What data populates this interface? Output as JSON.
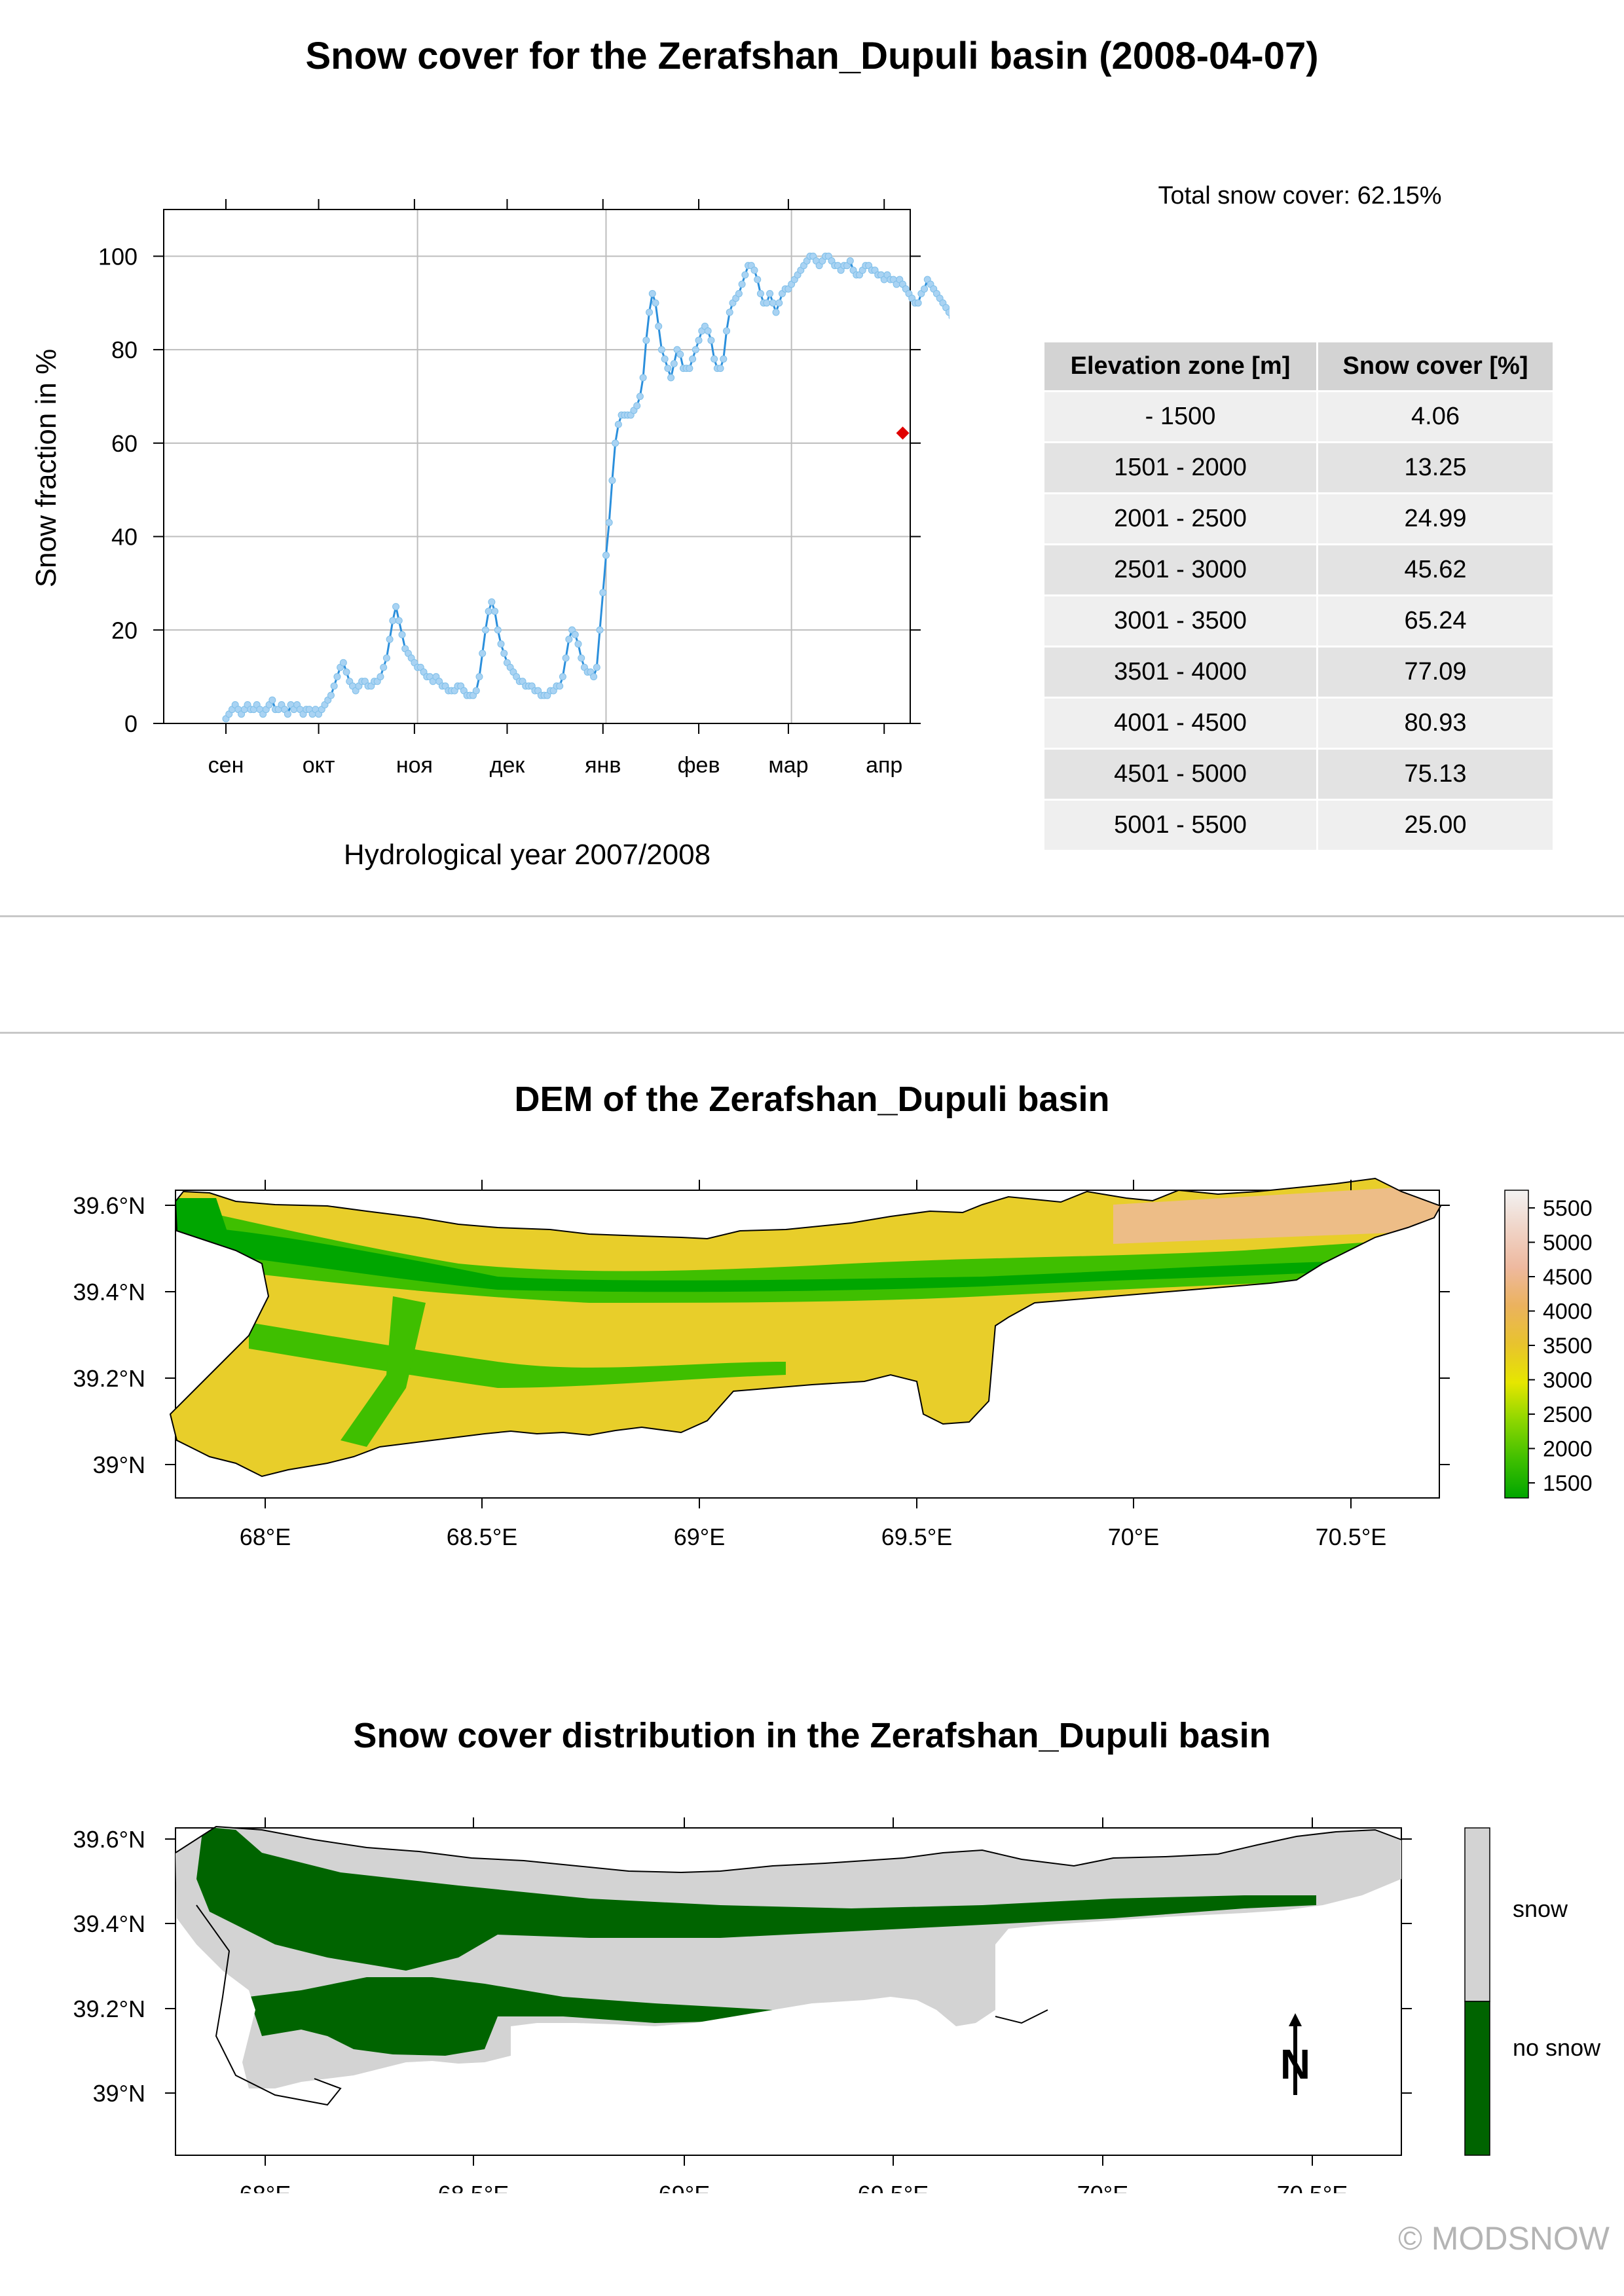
{
  "page": {
    "title": "Snow cover for the Zerafshan_Dupuli basin (2008-04-07)",
    "copyright": "© MODSNOW"
  },
  "snow_summary": {
    "total_label": "Total snow cover: 62.15%",
    "table_headers": [
      "Elevation zone [m]",
      "Snow cover [%]"
    ],
    "table_rows": [
      {
        "zone": "- 1500",
        "cover": "4.06"
      },
      {
        "zone": "1501 - 2000",
        "cover": "13.25"
      },
      {
        "zone": "2001 - 2500",
        "cover": "24.99"
      },
      {
        "zone": "2501 - 3000",
        "cover": "45.62"
      },
      {
        "zone": "3001 - 3500",
        "cover": "65.24"
      },
      {
        "zone": "3501 - 4000",
        "cover": "77.09"
      },
      {
        "zone": "4001 - 4500",
        "cover": "80.93"
      },
      {
        "zone": "4501 - 5000",
        "cover": "75.13"
      },
      {
        "zone": "5001 - 5500",
        "cover": "25.00"
      }
    ]
  },
  "chart_data": [
    {
      "type": "line",
      "title": "",
      "xlabel": "Hydrological year 2007/2008",
      "ylabel": "Snow fraction in %",
      "x_tick_labels": [
        "сен",
        "окт",
        "ноя",
        "дек",
        "янв",
        "фев",
        "мар",
        "апр"
      ],
      "y_ticks": [
        0,
        20,
        40,
        60,
        80,
        100
      ],
      "ylim": [
        0,
        110
      ],
      "grid": true,
      "line_color": "#2b8fdc",
      "highlight_color": "#e00000",
      "highlight": {
        "date": "2008-04-07",
        "value": 62.15
      },
      "series": [
        {
          "x_start_date": "2007-09-01",
          "x_day_step": 1,
          "values": [
            1,
            2,
            3,
            4,
            3,
            2,
            3,
            4,
            3,
            3,
            4,
            3,
            2,
            3,
            4,
            5,
            3,
            3,
            4,
            3,
            2,
            4,
            3,
            4,
            3,
            2,
            3,
            3,
            2,
            3,
            2,
            3,
            4,
            5,
            6,
            8,
            10,
            12,
            13,
            11,
            9,
            8,
            7,
            8,
            9,
            9,
            8,
            8,
            9,
            9,
            10,
            12,
            14,
            18,
            22,
            25,
            22,
            19,
            16,
            15,
            14,
            13,
            12,
            12,
            11,
            10,
            10,
            9,
            10,
            9,
            8,
            8,
            7,
            7,
            7,
            8,
            8,
            7,
            6,
            6,
            6,
            7,
            10,
            15,
            20,
            24,
            26,
            24,
            20,
            17,
            15,
            13,
            12,
            11,
            10,
            9,
            9,
            8,
            8,
            8,
            7,
            7,
            6,
            6,
            6,
            7,
            7,
            8,
            8,
            10,
            14,
            18,
            20,
            19,
            17,
            14,
            12,
            11,
            11,
            10,
            12,
            20,
            28,
            36,
            43,
            52,
            60,
            64,
            66,
            66,
            66,
            66,
            67,
            68,
            70,
            74,
            82,
            88,
            92,
            90,
            85,
            80,
            78,
            76,
            74,
            77,
            80,
            79,
            76,
            76,
            76,
            78,
            80,
            82,
            84,
            85,
            84,
            82,
            78,
            76,
            76,
            78,
            84,
            88,
            90,
            91,
            92,
            94,
            96,
            98,
            98,
            97,
            95,
            92,
            90,
            90,
            92,
            90,
            88,
            90,
            92,
            93,
            93,
            94,
            95,
            96,
            97,
            98,
            99,
            100,
            100,
            99,
            98,
            99,
            100,
            100,
            99,
            98,
            98,
            97,
            98,
            98,
            99,
            97,
            96,
            96,
            97,
            98,
            98,
            97,
            97,
            96,
            96,
            95,
            96,
            95,
            95,
            94,
            95,
            94,
            93,
            92,
            91,
            90,
            90,
            92,
            93,
            95,
            94,
            93,
            92,
            91,
            90,
            89,
            88,
            87,
            89,
            91,
            93,
            95,
            96,
            96,
            94,
            92,
            90,
            88,
            90,
            95,
            99,
            100,
            100,
            99,
            98,
            97,
            94,
            92,
            88,
            86,
            85,
            83,
            80,
            78,
            76,
            75,
            72,
            70,
            70,
            70,
            67,
            66,
            68,
            70,
            68,
            64,
            60,
            59,
            58,
            57,
            55,
            54,
            52,
            50,
            49,
            48,
            49,
            51,
            54,
            56,
            57,
            55,
            52,
            50,
            48,
            46,
            44,
            46,
            48,
            50,
            55,
            62.15
          ]
        }
      ]
    },
    {
      "type": "heatmap",
      "title": "DEM of the Zerafshan_Dupuli basin",
      "x_tick_labels": [
        "68°E",
        "68.5°E",
        "69°E",
        "69.5°E",
        "70°E",
        "70.5°E"
      ],
      "y_tick_labels": [
        "39°N",
        "39.2°N",
        "39.4°N",
        "39.6°N"
      ],
      "colorbar_labels": [
        "1500",
        "2000",
        "2500",
        "3000",
        "3500",
        "4000",
        "4500",
        "5000",
        "5500"
      ],
      "colorbar_colors": [
        "#00a600",
        "#3fbf00",
        "#8cd600",
        "#e6e600",
        "#e8c32e",
        "#ebb25e",
        "#eeb99f",
        "#f0d4c7",
        "#f2f2f2"
      ]
    },
    {
      "type": "heatmap",
      "title": "Snow cover distribution in the Zerafshan_Dupuli basin",
      "x_tick_labels": [
        "68°E",
        "68.5°E",
        "69°E",
        "69.5°E",
        "70°E",
        "70.5°E"
      ],
      "y_tick_labels": [
        "39°N",
        "39.2°N",
        "39.4°N",
        "39.6°N"
      ],
      "legend": [
        {
          "label": "snow",
          "color": "#d3d3d3"
        },
        {
          "label": "no snow",
          "color": "#006400"
        }
      ],
      "north_arrow_letter": "N"
    }
  ]
}
